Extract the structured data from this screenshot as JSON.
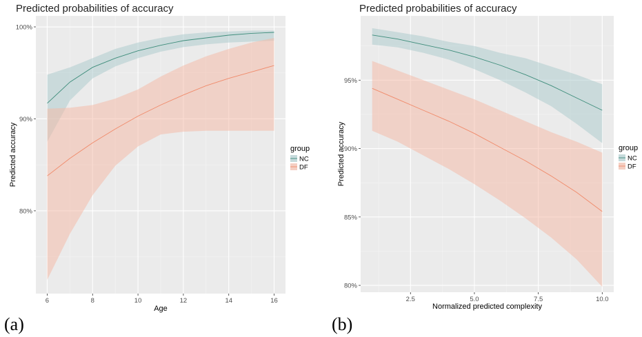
{
  "chart_data": [
    {
      "type": "line",
      "panel_label": "(a)",
      "title": "Predicted probabilities of accuracy",
      "xlabel": "Age",
      "ylabel": "Predicted accuracy",
      "xlim": [
        5.5,
        16.5
      ],
      "ylim": [
        71,
        101.2
      ],
      "xticks": [
        6,
        8,
        10,
        12,
        14,
        16
      ],
      "xtick_labels": [
        "6",
        "8",
        "10",
        "12",
        "14",
        "16"
      ],
      "yticks": [
        80,
        90,
        100
      ],
      "ytick_labels": [
        "80%",
        "90%",
        "100%"
      ],
      "grid": true,
      "legend": {
        "title": "group",
        "position": "right",
        "entries": [
          "NC",
          "DF"
        ]
      },
      "series": [
        {
          "name": "NC",
          "color": "#3d8c7a",
          "fill": "#a9c9cc",
          "x": [
            6,
            7,
            8,
            9,
            10,
            11,
            12,
            13,
            14,
            15,
            16
          ],
          "y": [
            91.7,
            94.0,
            95.6,
            96.6,
            97.4,
            98.0,
            98.5,
            98.8,
            99.1,
            99.3,
            99.4
          ],
          "lower": [
            87.5,
            92.0,
            94.4,
            95.7,
            96.6,
            97.3,
            97.8,
            98.1,
            98.3,
            98.4,
            98.5
          ],
          "upper": [
            94.8,
            95.6,
            96.6,
            97.6,
            98.3,
            98.8,
            99.2,
            99.4,
            99.5,
            99.6,
            99.6
          ]
        },
        {
          "name": "DF",
          "color": "#f08a6a",
          "fill": "#f5b8a4",
          "x": [
            6,
            7,
            8,
            9,
            10,
            11,
            12,
            13,
            14,
            15,
            16
          ],
          "y": [
            83.8,
            85.7,
            87.4,
            88.9,
            90.3,
            91.5,
            92.6,
            93.6,
            94.4,
            95.1,
            95.8
          ],
          "lower": [
            72.5,
            77.5,
            81.7,
            84.9,
            87.0,
            88.3,
            88.6,
            88.7,
            88.7,
            88.7,
            88.7
          ],
          "upper": [
            91.1,
            91.2,
            91.5,
            92.2,
            93.2,
            94.6,
            95.8,
            96.8,
            97.6,
            98.3,
            98.8
          ]
        }
      ]
    },
    {
      "type": "line",
      "panel_label": "(b)",
      "title": "Predicted probabilities of accuracy",
      "xlabel": "Normalized predicted complexity",
      "ylabel": "Predicted accuracy",
      "xlim": [
        0.55,
        10.45
      ],
      "ylim": [
        79.5,
        99.7
      ],
      "xticks": [
        2.5,
        5.0,
        7.5,
        10.0
      ],
      "xtick_labels": [
        "2.5",
        "5.0",
        "7.5",
        "10.0"
      ],
      "yticks": [
        80,
        85,
        90,
        95
      ],
      "ytick_labels": [
        "80%",
        "85%",
        "90%",
        "95%"
      ],
      "grid": true,
      "legend": {
        "title": "group",
        "position": "right",
        "entries": [
          "NC",
          "DF"
        ]
      },
      "series": [
        {
          "name": "NC",
          "color": "#3d8c7a",
          "fill": "#a9c9cc",
          "x": [
            1,
            2,
            3,
            4,
            5,
            6,
            7,
            8,
            9,
            10
          ],
          "y": [
            98.3,
            98.0,
            97.6,
            97.2,
            96.7,
            96.1,
            95.4,
            94.6,
            93.7,
            92.8
          ],
          "lower": [
            97.6,
            97.4,
            97.0,
            96.5,
            95.8,
            95.0,
            94.1,
            93.1,
            91.8,
            90.4
          ],
          "upper": [
            98.8,
            98.5,
            98.2,
            97.8,
            97.5,
            97.0,
            96.6,
            96.0,
            95.4,
            94.7
          ]
        },
        {
          "name": "DF",
          "color": "#f08a6a",
          "fill": "#f5b8a4",
          "x": [
            1,
            2,
            3,
            4,
            5,
            6,
            7,
            8,
            9,
            10
          ],
          "y": [
            94.4,
            93.6,
            92.8,
            92.0,
            91.1,
            90.1,
            89.1,
            88.0,
            86.8,
            85.4
          ],
          "lower": [
            91.3,
            90.5,
            89.5,
            88.5,
            87.4,
            86.2,
            84.9,
            83.5,
            81.9,
            79.9
          ],
          "upper": [
            96.4,
            95.7,
            95.0,
            94.3,
            93.6,
            92.8,
            92.0,
            91.2,
            90.5,
            89.7
          ]
        }
      ]
    }
  ]
}
